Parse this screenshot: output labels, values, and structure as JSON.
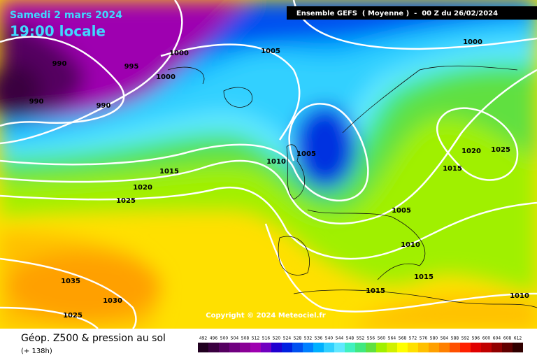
{
  "header": {
    "date": "Samedi 2 mars 2024",
    "time": "19:00 locale",
    "model": "Ensemble GEFS  ( Moyenne )  -  00 Z du 26/02/2024"
  },
  "copyright": "Copyright © 2024 Meteociel.fr",
  "footer": {
    "title": "Géop. Z500 & pression au sol",
    "lead": "(+ 138h)"
  },
  "isobar_labels": [
    990,
    990,
    990,
    995,
    1000,
    1000,
    1005,
    1000,
    1005,
    1010,
    1015,
    1020,
    1025,
    1020,
    1025,
    1015,
    1005,
    1010,
    1015,
    1015,
    1035,
    1030,
    1025,
    1010
  ],
  "legend": {
    "values": [
      492,
      496,
      500,
      504,
      508,
      512,
      516,
      520,
      524,
      528,
      532,
      536,
      540,
      544,
      548,
      552,
      556,
      560,
      564,
      568,
      572,
      576,
      580,
      584,
      588,
      592,
      596,
      600,
      604,
      608,
      612
    ],
    "colors": [
      "#200020",
      "#3a0040",
      "#550060",
      "#700080",
      "#8a0096",
      "#9e00b0",
      "#7000c0",
      "#2000d0",
      "#0020e0",
      "#0050f0",
      "#0080ff",
      "#00b0ff",
      "#30d0ff",
      "#60e8ff",
      "#40f0c0",
      "#40e880",
      "#60e040",
      "#a0f000",
      "#d0f000",
      "#ffff00",
      "#ffe000",
      "#ffc000",
      "#ffa000",
      "#ff8000",
      "#ff5000",
      "#ff2000",
      "#e00000",
      "#c00000",
      "#900000",
      "#600000",
      "#300000"
    ]
  }
}
